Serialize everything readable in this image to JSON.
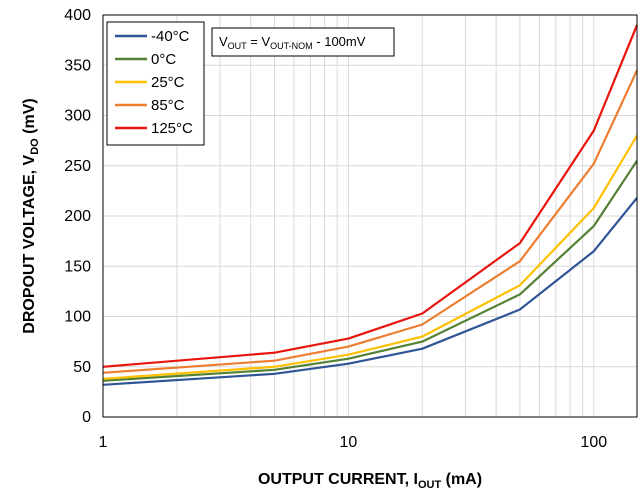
{
  "chart_data": {
    "type": "line",
    "title": "",
    "xlabel": {
      "main": "OUTPUT CURRENT, I",
      "sub": "OUT",
      "unit": " (mA)"
    },
    "ylabel": {
      "main": "DROPOUT VOLTAGE, V",
      "sub": "DO",
      "unit": " (mV)"
    },
    "xscale": "log",
    "xlim": [
      1,
      150
    ],
    "ylim": [
      0,
      400
    ],
    "xticks": [
      1,
      10,
      100
    ],
    "xtick_labels": [
      "1",
      "10",
      "100"
    ],
    "yticks": [
      0,
      50,
      100,
      150,
      200,
      250,
      300,
      350,
      400
    ],
    "ytick_labels": [
      "0",
      "50",
      "100",
      "150",
      "200",
      "250",
      "300",
      "350",
      "400"
    ],
    "grid": "horizontal major and log-minor vertical",
    "legend_position": "top-left",
    "annotation": {
      "v1": "V",
      "s1": "OUT",
      "eq": " = V",
      "s2": "OUT-NOM",
      "tail": " - 100mV"
    },
    "series": [
      {
        "name": "-40°C",
        "color": "#2F5597",
        "x": [
          1,
          5,
          10,
          20,
          50,
          100,
          150
        ],
        "y": [
          32,
          43,
          53,
          68,
          107,
          165,
          218
        ]
      },
      {
        "name": "0°C",
        "color": "#548235",
        "x": [
          1,
          5,
          10,
          20,
          50,
          100,
          150
        ],
        "y": [
          36,
          47,
          58,
          75,
          122,
          190,
          255
        ]
      },
      {
        "name": "25°C",
        "color": "#FFC000",
        "x": [
          1,
          5,
          10,
          20,
          50,
          100,
          150
        ],
        "y": [
          38,
          50,
          62,
          80,
          131,
          208,
          280
        ]
      },
      {
        "name": "85°C",
        "color": "#ED7D31",
        "x": [
          1,
          5,
          10,
          20,
          50,
          100,
          150
        ],
        "y": [
          44,
          56,
          70,
          92,
          155,
          252,
          345
        ]
      },
      {
        "name": "125°C",
        "color": "#E8150E",
        "x": [
          1,
          5,
          10,
          20,
          50,
          100,
          150
        ],
        "y": [
          50,
          64,
          78,
          103,
          173,
          285,
          390
        ]
      }
    ]
  }
}
